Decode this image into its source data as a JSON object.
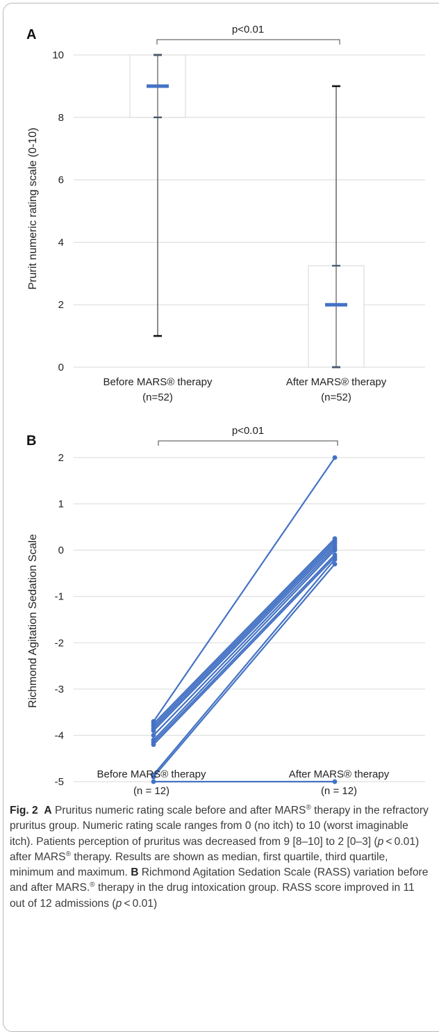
{
  "panel_a": {
    "letter": "A",
    "ylabel": "Prurit numeric rating scale (0-10)",
    "yticks": [
      "0",
      "2",
      "4",
      "6",
      "8",
      "10"
    ],
    "significance": "p<0.01",
    "groups": [
      {
        "name": "Before MARS® therapy",
        "n": "(n=52)"
      },
      {
        "name": "After MARS® therapy",
        "n": "(n=52)"
      }
    ]
  },
  "panel_b": {
    "letter": "B",
    "ylabel": "Richmond Agitation Sedation Scale",
    "yticks": [
      "2",
      "1",
      "0",
      "-1",
      "-2",
      "-3",
      "-4",
      "-5"
    ],
    "significance": "p<0.01",
    "groups": [
      {
        "name": "Before MARS® therapy",
        "n": "(n = 12)"
      },
      {
        "name": "After MARS® therapy",
        "n": "(n = 12)"
      }
    ]
  },
  "caption": {
    "fig_label": "Fig. 2",
    "a_letter": "A",
    "a_text_1": "Pruritus numeric rating scale before and after MARS",
    "a_text_2": "therapy in the refractory pruritus group. Numeric rating scale ranges from 0 (no itch) to 10 (worst imaginable itch). Patients perception of pruritus was decreased from 9 [8–10] to 2 [0–3] (",
    "p_symbol": "p",
    "a_text_3": " < 0.01) after MARS",
    "a_text_4": "therapy. Results are shown as median, first quartile, third quartile, minimum and maximum.",
    "b_letter": "B",
    "b_text_1": "Richmond Agitation Sedation Scale (RASS) variation before and after MARS.",
    "b_text_2": "therapy in the drug intoxication group. RASS score improved in 11 out of 12 admissions (",
    "b_text_3": " < 0.01)",
    "registered": "®"
  },
  "chart_data": [
    {
      "type": "box",
      "title": "",
      "ylabel": "Prurit numeric rating scale (0-10)",
      "ylim": [
        0,
        10
      ],
      "grid": true,
      "color": "#4472c4",
      "categories": [
        "Before MARS® therapy (n=52)",
        "After MARS® therapy (n=52)"
      ],
      "boxes": [
        {
          "min": 1,
          "q1": 8,
          "median": 9,
          "q3": 10,
          "max": 10
        },
        {
          "min": 0,
          "q1": 0,
          "median": 2,
          "q3": 3.25,
          "max": 9
        }
      ],
      "annotation": "p<0.01"
    },
    {
      "type": "line",
      "title": "",
      "ylabel": "Richmond Agitation Sedation Scale",
      "ylim": [
        -5,
        2
      ],
      "grid": true,
      "color": "#4472c4",
      "categories": [
        "Before MARS® therapy (n = 12)",
        "After MARS® therapy (n = 12)"
      ],
      "paired_values": [
        [
          -3.7,
          2.0
        ],
        [
          -3.75,
          0.25
        ],
        [
          -3.8,
          0.2
        ],
        [
          -3.85,
          0.15
        ],
        [
          -3.9,
          0.1
        ],
        [
          -4.0,
          0.05
        ],
        [
          -4.1,
          0.0
        ],
        [
          -4.15,
          -0.1
        ],
        [
          -4.2,
          -0.15
        ],
        [
          -4.85,
          -0.2
        ],
        [
          -4.9,
          -0.3
        ],
        [
          -5.0,
          -5.0
        ]
      ],
      "annotation": "p<0.01"
    }
  ]
}
